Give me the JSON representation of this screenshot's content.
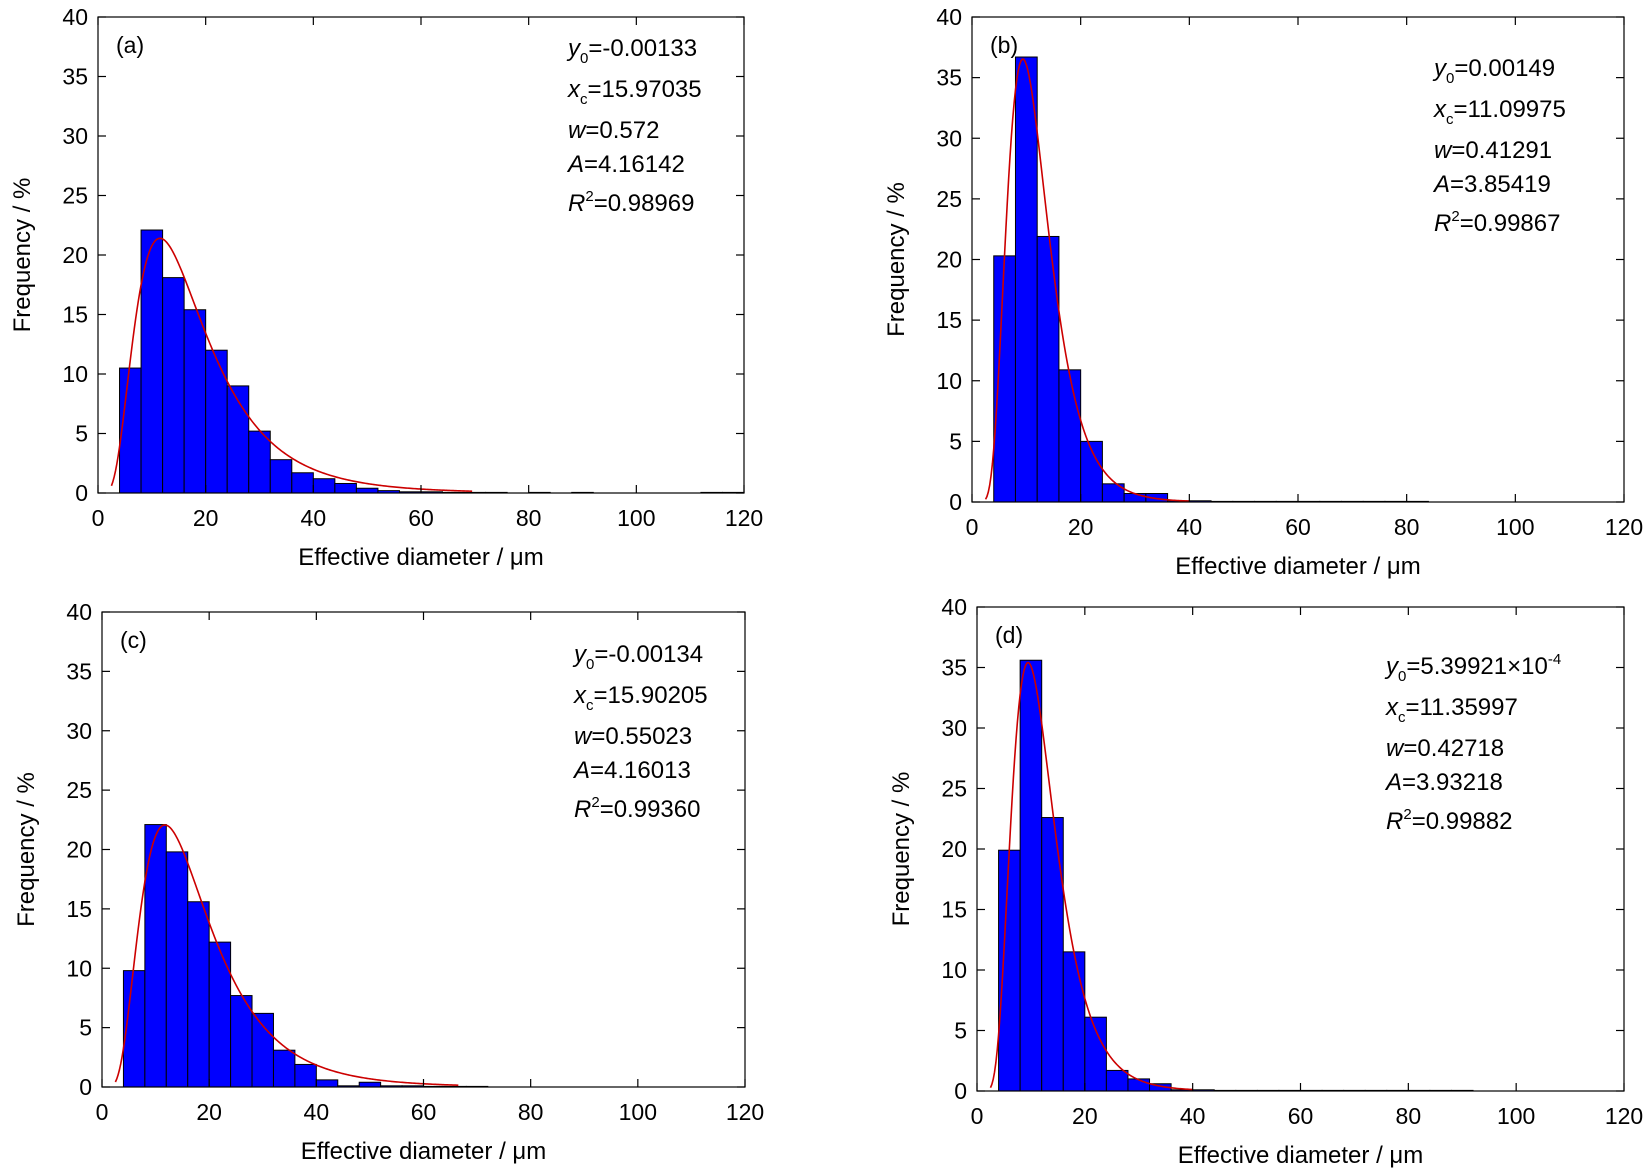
{
  "figure": {
    "bar_color": "#0000ff",
    "bar_edge": "#000000",
    "fit_color": "#cc0000"
  },
  "chart_data": [
    {
      "type": "bar",
      "panel_label": "(a)",
      "xlabel": "Effective diameter / μm",
      "ylabel": "Frequency / %",
      "xlim": [
        0,
        120
      ],
      "ylim": [
        0,
        40
      ],
      "xticks": [
        0,
        20,
        40,
        60,
        80,
        100,
        120
      ],
      "yticks": [
        0,
        5,
        10,
        15,
        20,
        25,
        30,
        35,
        40
      ],
      "bin_width": 4,
      "bins_start": [
        4,
        8,
        12,
        16,
        20,
        24,
        28,
        32,
        36,
        40,
        44,
        48,
        52,
        56,
        60,
        64,
        68,
        72,
        76,
        80,
        84,
        88,
        92,
        96,
        100,
        104,
        108,
        112,
        116
      ],
      "values": [
        10.5,
        22.1,
        18.1,
        15.4,
        12.0,
        9.0,
        5.2,
        2.8,
        1.7,
        1.2,
        0.8,
        0.4,
        0.2,
        0.1,
        0.1,
        0.05,
        0.05,
        0.05,
        0,
        0.05,
        0,
        0.05,
        0,
        0,
        0,
        0,
        0,
        0.05,
        0.05
      ],
      "fit": {
        "y0": -0.00133,
        "xc": 15.97035,
        "w": 0.572,
        "A": 4.16142
      },
      "annotations": {
        "y0_label": "y",
        "y0_sub": "0",
        "y0_value": "=-0.00133",
        "xc_label": "x",
        "xc_sub": "c",
        "xc_value": "=15.97035",
        "w_label": "w",
        "w_value": "=0.572",
        "A_label": "A",
        "A_value": "=4.16142",
        "R_label": "R",
        "R_sup": "2",
        "R_value": "=0.98969"
      }
    },
    {
      "type": "bar",
      "panel_label": "(b)",
      "xlabel": "Effective diameter / μm",
      "ylabel": "Frequency / %",
      "xlim": [
        0,
        120
      ],
      "ylim": [
        0,
        40
      ],
      "xticks": [
        0,
        20,
        40,
        60,
        80,
        100,
        120
      ],
      "yticks": [
        0,
        5,
        10,
        15,
        20,
        25,
        30,
        35,
        40
      ],
      "bin_width": 4,
      "bins_start": [
        4,
        8,
        12,
        16,
        20,
        24,
        28,
        32,
        36,
        40,
        44,
        48,
        52,
        56,
        60,
        64,
        68,
        72,
        76,
        80
      ],
      "values": [
        20.3,
        36.7,
        21.9,
        10.9,
        5.0,
        1.5,
        0.7,
        0.7,
        0.1,
        0.1,
        0.05,
        0.05,
        0.05,
        0.05,
        0.05,
        0.05,
        0.05,
        0.05,
        0.05,
        0.05
      ],
      "fit": {
        "y0": 0.00149,
        "xc": 11.09975,
        "w": 0.41291,
        "A": 3.85419
      },
      "annotations": {
        "y0_label": "y",
        "y0_sub": "0",
        "y0_value": "=0.00149",
        "xc_label": "x",
        "xc_sub": "c",
        "xc_value": "=11.09975",
        "w_label": "w",
        "w_value": "=0.41291",
        "A_label": "A",
        "A_value": "=3.85419",
        "R_label": "R",
        "R_sup": "2",
        "R_value": "=0.99867"
      }
    },
    {
      "type": "bar",
      "panel_label": "(c)",
      "xlabel": "Effective diameter / μm",
      "ylabel": "Frequency / %",
      "xlim": [
        0,
        120
      ],
      "ylim": [
        0,
        40
      ],
      "xticks": [
        0,
        20,
        40,
        60,
        80,
        100,
        120
      ],
      "yticks": [
        0,
        5,
        10,
        15,
        20,
        25,
        30,
        35,
        40
      ],
      "bin_width": 4,
      "bins_start": [
        4,
        8,
        12,
        16,
        20,
        24,
        28,
        32,
        36,
        40,
        44,
        48,
        52,
        56,
        60,
        64,
        68
      ],
      "values": [
        9.8,
        22.1,
        19.8,
        15.6,
        12.2,
        7.7,
        6.2,
        3.1,
        1.9,
        0.6,
        0.1,
        0.4,
        0.1,
        0.1,
        0.05,
        0.05,
        0.05
      ],
      "fit": {
        "y0": -0.00134,
        "xc": 15.90205,
        "w": 0.55023,
        "A": 4.16013
      },
      "annotations": {
        "y0_label": "y",
        "y0_sub": "0",
        "y0_value": "=-0.00134",
        "xc_label": "x",
        "xc_sub": "c",
        "xc_value": "=15.90205",
        "w_label": "w",
        "w_value": "=0.55023",
        "A_label": "A",
        "A_value": "=4.16013",
        "R_label": "R",
        "R_sup": "2",
        "R_value": "=0.99360"
      }
    },
    {
      "type": "bar",
      "panel_label": "(d)",
      "xlabel": "Effective diameter / μm",
      "ylabel": "Frequency / %",
      "xlim": [
        0,
        120
      ],
      "ylim": [
        0,
        40
      ],
      "xticks": [
        0,
        20,
        40,
        60,
        80,
        100,
        120
      ],
      "yticks": [
        0,
        5,
        10,
        15,
        20,
        25,
        30,
        35,
        40
      ],
      "bin_width": 4,
      "bins_start": [
        4,
        8,
        12,
        16,
        20,
        24,
        28,
        32,
        36,
        40,
        44,
        48,
        52,
        56,
        60,
        64,
        68,
        72,
        76,
        80,
        84,
        88
      ],
      "values": [
        19.9,
        35.6,
        22.6,
        11.5,
        6.1,
        1.7,
        1.0,
        0.6,
        0.1,
        0.1,
        0.05,
        0.05,
        0.05,
        0.05,
        0.05,
        0.05,
        0.05,
        0.05,
        0.05,
        0.05,
        0.05,
        0.05
      ],
      "fit": {
        "y0": 0.000539921,
        "xc": 11.35997,
        "w": 0.42718,
        "A": 3.93218
      },
      "annotations": {
        "y0_label": "y",
        "y0_sub": "0",
        "y0_value": "=5.39921×10",
        "y0_exp": "-4",
        "xc_label": "x",
        "xc_sub": "c",
        "xc_value": "=11.35997",
        "w_label": "w",
        "w_value": "=0.42718",
        "A_label": "A",
        "A_value": "=3.93218",
        "R_label": "R",
        "R_sup": "2",
        "R_value": "=0.99882"
      }
    }
  ]
}
